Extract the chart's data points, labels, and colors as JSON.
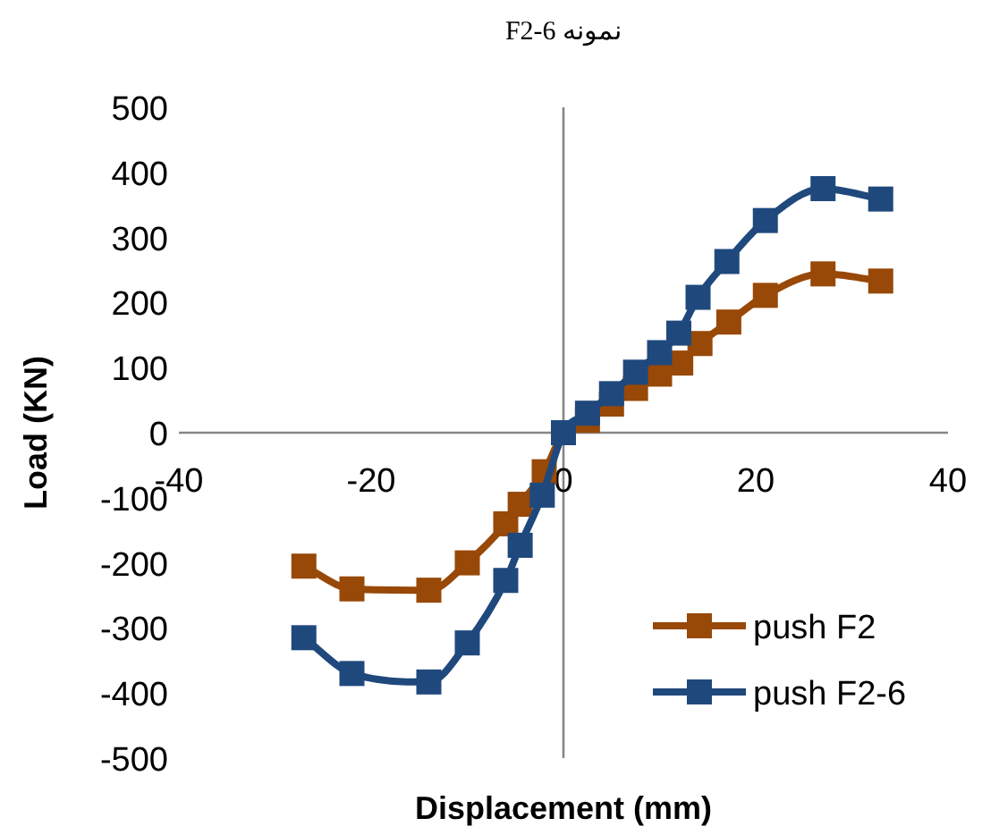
{
  "chart_data": {
    "type": "line",
    "title": "نمونه F2-6",
    "xlabel": "Displacement (mm)",
    "ylabel": "Load (KN)",
    "xlim": [
      -40,
      40
    ],
    "ylim": [
      -500,
      500
    ],
    "xticks": [
      -40,
      -20,
      0,
      20,
      40
    ],
    "yticks": [
      -500,
      -400,
      -300,
      -200,
      -100,
      0,
      100,
      200,
      300,
      400,
      500
    ],
    "marker": "square",
    "legend": "bottom right",
    "series": [
      {
        "name": "push F2",
        "color": "#984807",
        "x": [
          -27,
          -22,
          -14,
          -10,
          -6,
          -4.5,
          -2,
          0,
          2.5,
          5,
          7.5,
          10,
          12.2,
          14.2,
          17.2,
          21,
          27,
          33
        ],
        "values": [
          -205,
          -240,
          -242,
          -200,
          -140,
          -110,
          -60,
          0,
          19,
          44,
          68,
          90,
          107,
          137,
          170,
          211,
          244,
          233
        ]
      },
      {
        "name": "push F2-6",
        "color": "#1f497d",
        "x": [
          -27,
          -22,
          -14,
          -10,
          -6,
          -4.5,
          -2.2,
          0,
          2.5,
          5,
          7.5,
          10,
          12,
          14,
          17,
          21,
          27,
          33
        ],
        "values": [
          -315,
          -370,
          -383,
          -323,
          -227,
          -173,
          -96,
          0,
          30,
          60,
          93,
          123,
          153,
          208,
          263,
          326,
          375,
          359
        ]
      }
    ]
  }
}
